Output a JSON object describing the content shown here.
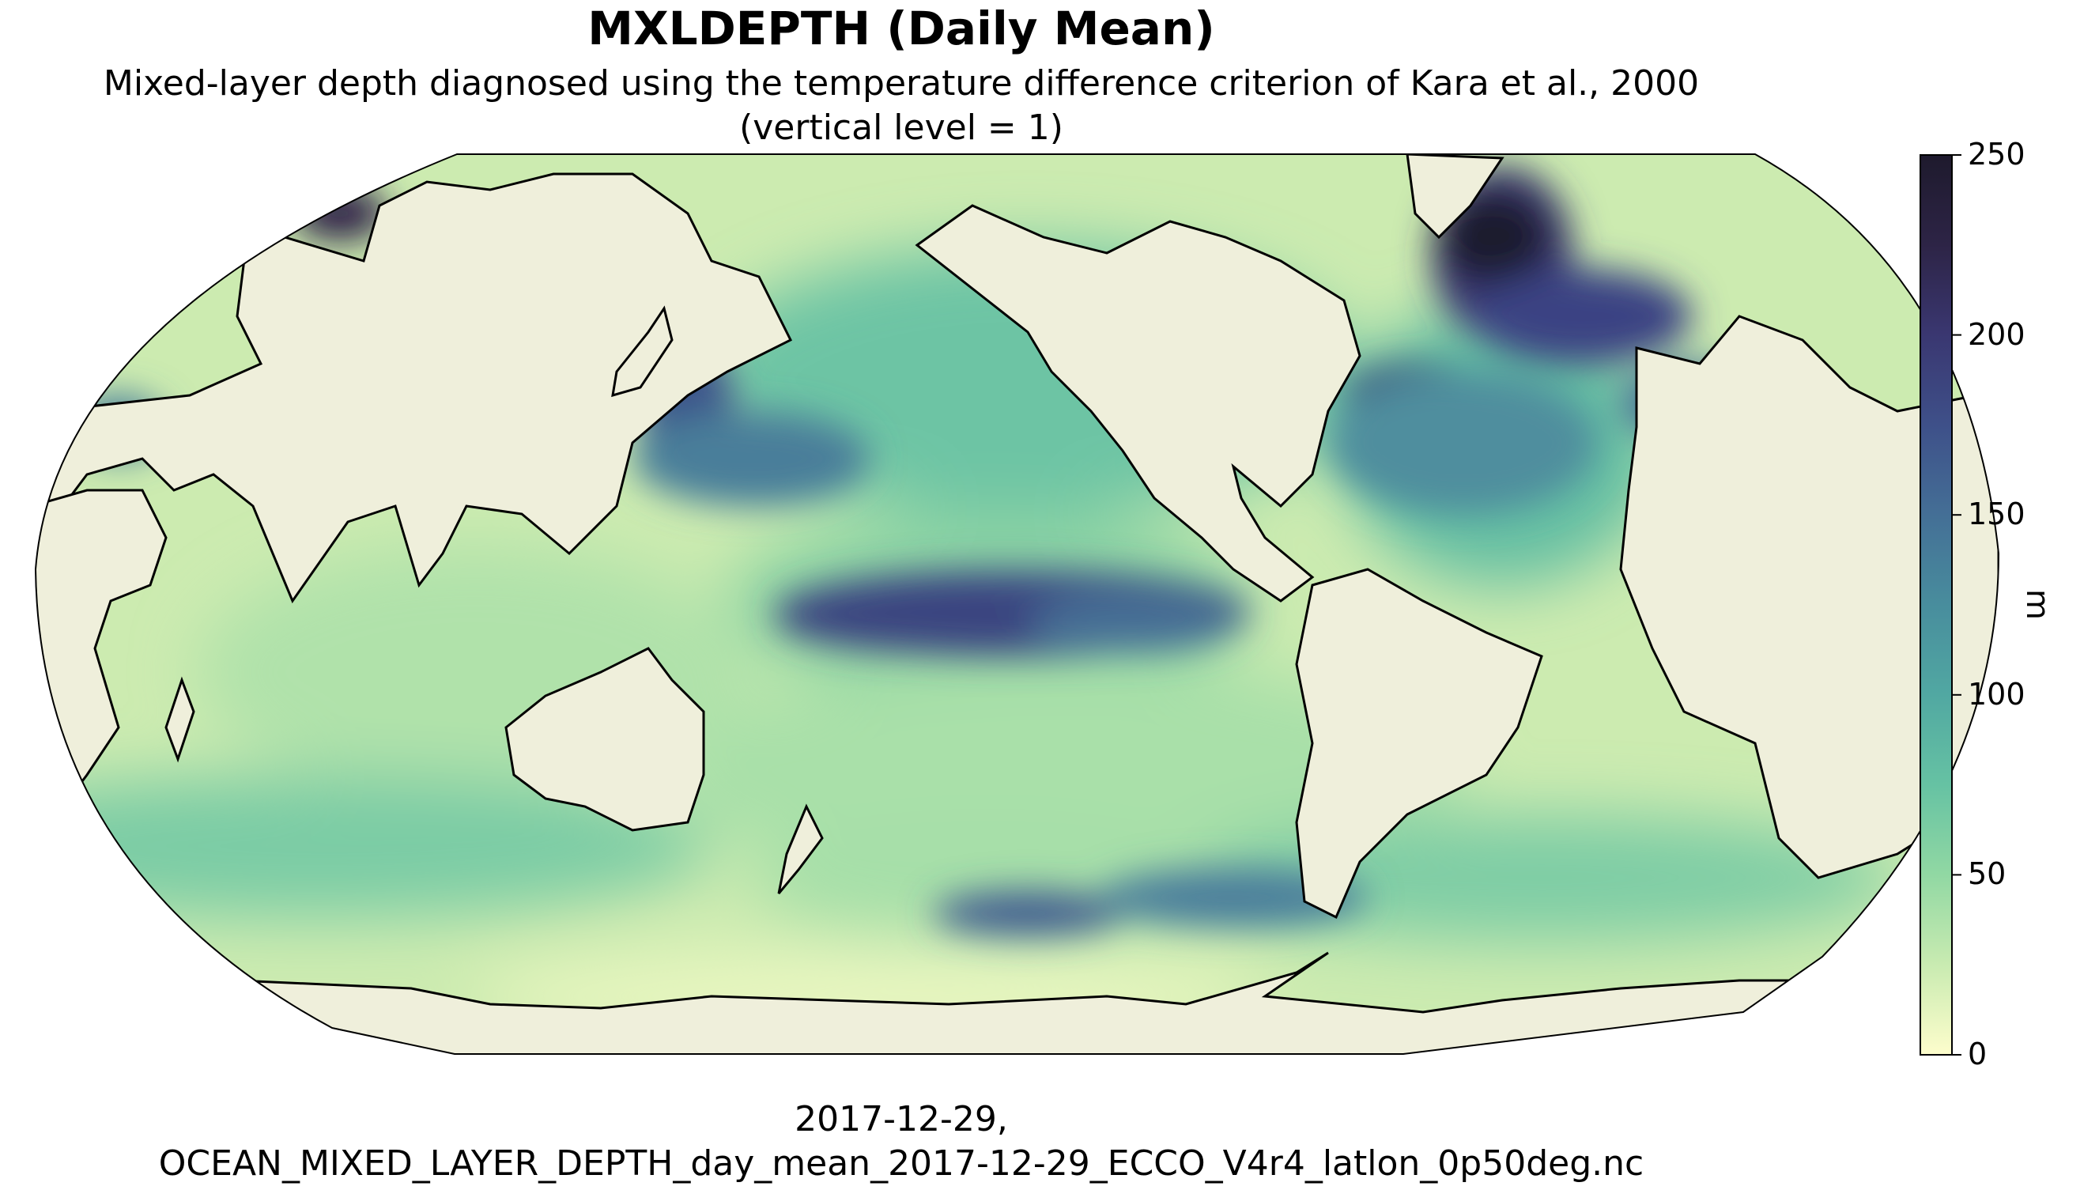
{
  "title": "MXLDEPTH (Daily Mean)",
  "subtitle_line1": "Mixed-layer depth diagnosed using the temperature difference criterion of Kara et al., 2000",
  "subtitle_line2": "(vertical level = 1)",
  "footer_line1": "2017-12-29,",
  "footer_line2": "OCEAN_MIXED_LAYER_DEPTH_day_mean_2017-12-29_ECCO_V4r4_latlon_0p50deg.nc",
  "colorbar": {
    "label": "m",
    "min": 0,
    "max": 250,
    "ticks": [
      "0",
      "50",
      "100",
      "150",
      "200",
      "250"
    ],
    "colors": [
      "#fdfdcc",
      "#c9ebb1",
      "#91d8a3",
      "#66c2a3",
      "#51a8a2",
      "#488d9d",
      "#446f96",
      "#3e5089",
      "#3a3771",
      "#2d2446",
      "#1e1a2d"
    ]
  },
  "colors": {
    "land": "#efefdb",
    "coast": "#000000"
  }
}
